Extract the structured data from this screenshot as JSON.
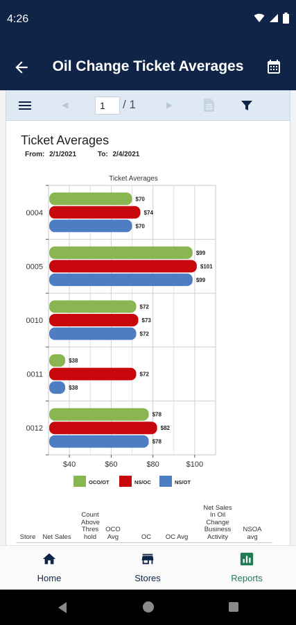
{
  "status": {
    "time": "4:26"
  },
  "header": {
    "title": "Oil Change Ticket Averages"
  },
  "toolbar": {
    "page_value": "1",
    "page_total": "/ 1"
  },
  "report": {
    "title": "Ticket Averages",
    "from_label": "From:",
    "from_value": "2/1/2021",
    "to_label": "To:",
    "to_value": "2/4/2021"
  },
  "colors": {
    "oco_ot": "#8ab651",
    "ns_oc": "#c8070c",
    "ns_ot": "#4f7dc4",
    "navy": "#0f2447",
    "active_green": "#207a54"
  },
  "chart_data": {
    "type": "bar",
    "orientation": "horizontal",
    "title": "Ticket Averages",
    "categories": [
      "0004",
      "0005",
      "0010",
      "0011",
      "0012"
    ],
    "series": [
      {
        "name": "OCO/OT",
        "values": [
          70,
          99,
          72,
          38,
          78
        ],
        "labels": [
          "$70",
          "$99",
          "$72",
          "$38",
          "$78"
        ]
      },
      {
        "name": "NS/OC",
        "values": [
          74,
          101,
          73,
          72,
          82
        ],
        "labels": [
          "$74",
          "$101",
          "$73",
          "$72",
          "$82"
        ]
      },
      {
        "name": "NS/OT",
        "values": [
          70,
          99,
          72,
          38,
          78
        ],
        "labels": [
          "$70",
          "$99",
          "$72",
          "$38",
          "$78"
        ]
      }
    ],
    "xlim": [
      30,
      110
    ],
    "xticks": [
      40,
      60,
      80,
      100
    ],
    "xtick_labels": [
      "$40",
      "$60",
      "$80",
      "$100"
    ],
    "grid": true,
    "legend": "bottom"
  },
  "table": {
    "columns": [
      "Store",
      "Net Sales",
      "Count Above Thres hold",
      "OCO Avg",
      "OC",
      "OC Avg",
      "Net Sales In Oil Change Business Activity",
      "NSOA avg"
    ]
  },
  "nav": {
    "home": {
      "label": "Home",
      "icon": "home-icon"
    },
    "stores": {
      "label": "Stores",
      "icon": "store-icon"
    },
    "reports": {
      "label": "Reports",
      "icon": "bar-chart-icon"
    }
  }
}
